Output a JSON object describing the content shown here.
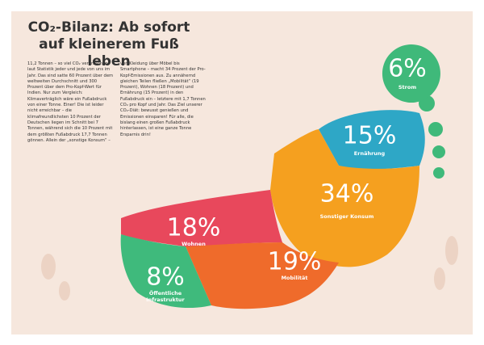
{
  "chart_data": {
    "type": "footprint",
    "title": "CO₂-Bilanz: Ab sofort auf kleinerem Fuß leben",
    "text": "11,2 Tonnen – so viel CO₂ verursachen laut Statistik jeder und jede von uns im Jahr. Das sind satte 60 Prozent über dem weltweiten Durchschnitt und 300 Prozent über dem Pro-Kopf-Wert für Indien. Nur zum Vergleich: Klimaverträglich wäre ein Fußabdruck von einer Tonne. Einer! Die ist leider nicht erreichbar – die klimafreundlichsten 10 Prozent der Deutschen liegen im Schnitt bei 7 Tonnen, während sich die 10 Prozent mit dem größten Fußabdruck 17,7 Tonnen gönnen. Allein der „sonstige Konsum“ – von Kleidung über Möbel bis Smartphone – macht 34 Prozent der Pro-Kopf-Emissionen aus. Zu annähernd gleichen Teilen fließen „Mobilität“ (19 Prozent), Wohnen (18 Prozent) und Ernährung (15 Prozent) in den Fußabdruck ein – letztere mit 1,7 Tonnen CO₂ pro Kopf und Jahr. Das Ziel unserer CO₂-Diät: bewusst genießen und Emissionen einsparen! Für alle, die bislang einen großen Fußabdruck hinterlassen, ist eine ganze Tonne Ersparnis drin!",
    "categories": [
      "Strom",
      "Ernährung",
      "Sonstiger Konsum",
      "Wohnen",
      "Mobilität",
      "Öffentliche Infrastruktur"
    ],
    "values": [
      6,
      15,
      34,
      18,
      19,
      8
    ],
    "value_labels": [
      "6%",
      "15%",
      "34%",
      "18%",
      "19%",
      "8%"
    ],
    "colors": [
      "#3fb97a",
      "#2ea7c6",
      "#f5a01f",
      "#e8485c",
      "#ef6b2b",
      "#3fba7c"
    ]
  }
}
